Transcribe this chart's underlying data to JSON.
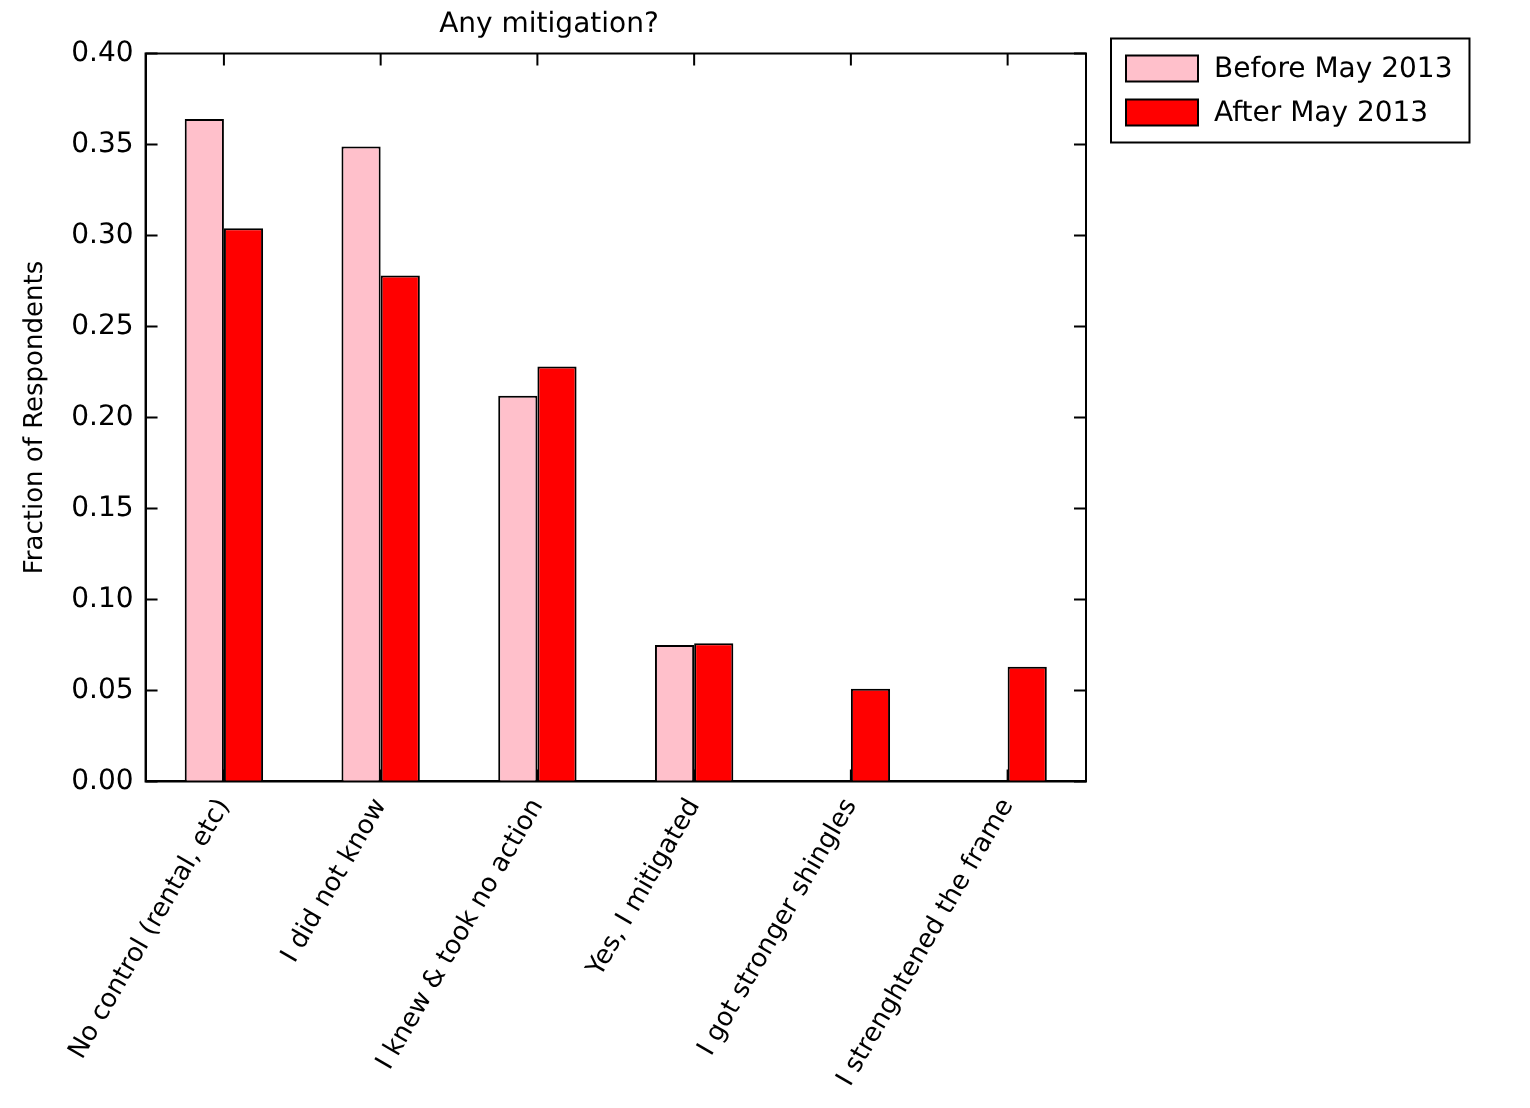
{
  "chart_data": {
    "type": "bar",
    "title": "Any mitigation?",
    "ylabel": "Fraction of Respondents",
    "categories": [
      "No control (rental, etc)",
      "I did not know",
      "I knew & took no action",
      "Yes, I mitigated",
      "I got stronger shingles",
      "I strenghtened the frame"
    ],
    "series": [
      {
        "name": "Before May 2013",
        "color": "#ffc0cb",
        "values": [
          0.364,
          0.349,
          0.212,
          0.075,
          0,
          0
        ]
      },
      {
        "name": "After May 2013",
        "color": "#ff0000",
        "values": [
          0.304,
          0.278,
          0.228,
          0.076,
          0.051,
          0.063
        ]
      }
    ],
    "ylim": [
      0,
      0.4
    ],
    "yticks": [
      {
        "value": 0,
        "label": "0.00"
      },
      {
        "value": 0.05,
        "label": "0.05"
      },
      {
        "value": 0.1,
        "label": "0.10"
      },
      {
        "value": 0.15,
        "label": "0.15"
      },
      {
        "value": 0.2,
        "label": "0.20"
      },
      {
        "value": 0.25,
        "label": "0.25"
      },
      {
        "value": 0.3,
        "label": "0.30"
      },
      {
        "value": 0.35,
        "label": "0.35"
      },
      {
        "value": 0.4,
        "label": "0.40"
      }
    ],
    "grid": false,
    "legend": "top right"
  }
}
